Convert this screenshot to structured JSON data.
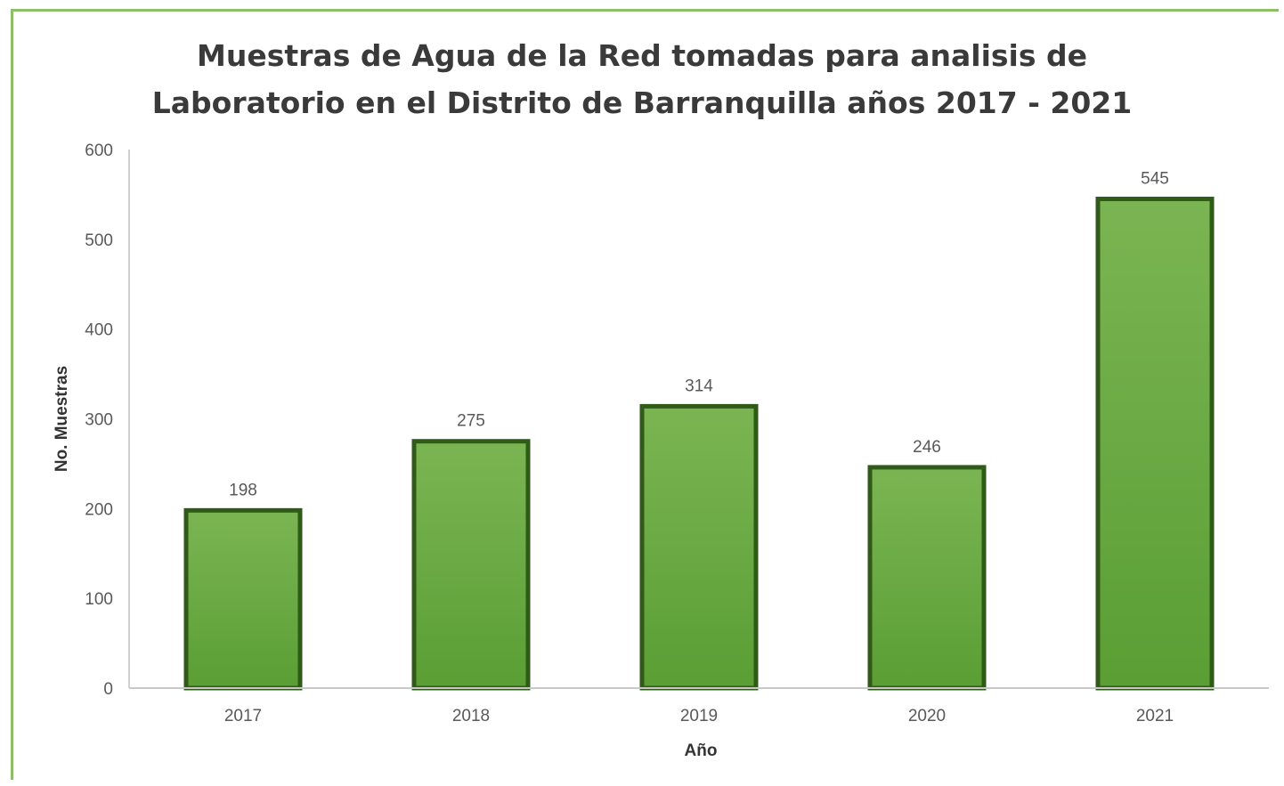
{
  "chart_data": {
    "type": "bar",
    "title_lines": [
      "Muestras de Agua de la Red tomadas para analisis de",
      "Laboratorio en el Distrito de Barranquilla años 2017 - 2021"
    ],
    "categories": [
      "2017",
      "2018",
      "2019",
      "2020",
      "2021"
    ],
    "values": [
      198,
      275,
      314,
      246,
      545
    ],
    "data_labels": [
      "198",
      "275",
      "314",
      "246",
      "545"
    ],
    "xlabel": "Año",
    "ylabel": "No. Muestras",
    "ylim": [
      0,
      600
    ],
    "yticks": [
      "0",
      "100",
      "200",
      "300",
      "400",
      "500",
      "600"
    ],
    "grid": false,
    "legend": "none",
    "colors": {
      "bar_fill_top": "#7bb553",
      "bar_fill_bottom": "#5a9e34",
      "bar_border": "#2f5a17",
      "frame": "#8cc068"
    }
  }
}
